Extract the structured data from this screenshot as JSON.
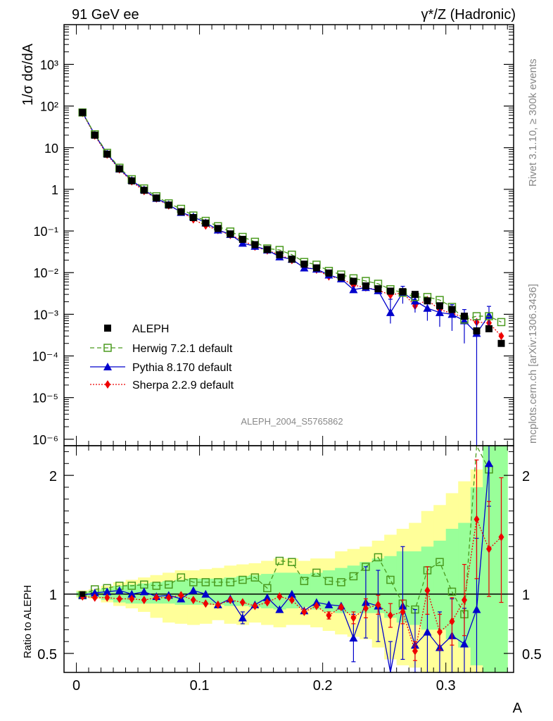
{
  "header": {
    "left": "91 GeV ee",
    "right": "γ*/Z (Hadronic)"
  },
  "side": {
    "rivet": "Rivet 3.1.10, ≥ 300k events",
    "mcplots": "mcplots.cern.ch [arXiv:1306.3436]"
  },
  "watermark": "ALEPH_2004_S5765862",
  "chart_data": [
    {
      "type": "scatter",
      "panel": "main",
      "title": "",
      "xlabel": "A",
      "ylabel": "1/σ  dσ/dA",
      "yscale": "log",
      "xlim": [
        -0.01,
        0.355
      ],
      "ylim": [
        7e-07,
        9000
      ],
      "yticks": [
        "10⁻⁶",
        "10⁻⁵",
        "10⁻⁴",
        "10⁻³",
        "10⁻²",
        "10⁻¹",
        "1",
        "10",
        "10²",
        "10³"
      ],
      "legend_position": "lower-left",
      "x": [
        0.005,
        0.015,
        0.025,
        0.035,
        0.045,
        0.055,
        0.065,
        0.075,
        0.085,
        0.095,
        0.105,
        0.115,
        0.125,
        0.135,
        0.145,
        0.155,
        0.165,
        0.175,
        0.185,
        0.195,
        0.205,
        0.215,
        0.225,
        0.235,
        0.245,
        0.255,
        0.265,
        0.275,
        0.285,
        0.295,
        0.305,
        0.315,
        0.325,
        0.335,
        0.345
      ],
      "series": [
        {
          "name": "ALEPH",
          "color": "#000000",
          "marker": "square",
          "values": [
            70,
            20,
            7,
            3.1,
            1.6,
            0.95,
            0.62,
            0.42,
            0.29,
            0.21,
            0.155,
            0.115,
            0.085,
            0.063,
            0.047,
            0.036,
            0.027,
            0.021,
            0.016,
            0.013,
            0.0098,
            0.0078,
            0.0062,
            0.0048,
            0.0041,
            0.0036,
            0.0035,
            0.003,
            0.0021,
            0.0016,
            0.0013,
            0.0009,
            0.0004,
            0.00045,
            0.0002
          ]
        },
        {
          "name": "Herwig 7.2.1 default",
          "color": "#4a9a1e",
          "marker": "open-square",
          "dash": "6,4",
          "values": [
            70,
            21,
            7.5,
            3.3,
            1.75,
            1.05,
            0.68,
            0.46,
            0.34,
            0.235,
            0.175,
            0.13,
            0.097,
            0.072,
            0.055,
            0.038,
            0.035,
            0.027,
            0.018,
            0.0155,
            0.011,
            0.009,
            0.0073,
            0.0063,
            0.0054,
            0.004,
            0.0033,
            0.0026,
            0.0026,
            0.0022,
            0.0015,
            0.00075,
            0.0009,
            0.0009,
            0.00065
          ]
        },
        {
          "name": "Pythia 8.170 default",
          "color": "#0000cc",
          "marker": "triangle",
          "values": [
            70,
            20.5,
            7.2,
            3.1,
            1.65,
            0.98,
            0.61,
            0.43,
            0.28,
            0.22,
            0.158,
            0.106,
            0.083,
            0.051,
            0.043,
            0.035,
            0.024,
            0.021,
            0.013,
            0.0122,
            0.0088,
            0.0071,
            0.0039,
            0.0044,
            0.0037,
            0.0011,
            0.0033,
            0.0021,
            0.0014,
            0.0011,
            0.001,
            0.0007,
            0.00035,
            0.00095,
            null
          ],
          "err_lo": [
            null,
            null,
            null,
            null,
            null,
            null,
            null,
            null,
            null,
            null,
            null,
            null,
            null,
            null,
            null,
            null,
            null,
            null,
            null,
            null,
            null,
            null,
            null,
            null,
            null,
            0.0005,
            0.0015,
            0.001,
            0.0007,
            0.0006,
            0.0006,
            0.0005,
            0.00035,
            0.0005,
            null
          ],
          "err_hi": [
            null,
            null,
            null,
            null,
            null,
            null,
            null,
            null,
            null,
            null,
            null,
            null,
            null,
            null,
            null,
            null,
            null,
            null,
            null,
            null,
            null,
            null,
            null,
            null,
            null,
            0.0012,
            0.0014,
            0.0012,
            0.0008,
            0.0007,
            0.0007,
            0.0006,
            0.0004,
            0.0006,
            null
          ]
        },
        {
          "name": "Sherpa 2.2.9 default",
          "color": "#ee0000",
          "marker": "diamond",
          "dash": "2,2",
          "values": [
            68,
            19.6,
            6.8,
            3.0,
            1.55,
            0.91,
            0.6,
            0.41,
            0.29,
            0.19,
            0.135,
            0.105,
            0.08,
            0.06,
            0.042,
            0.034,
            0.027,
            0.02,
            0.0135,
            0.0118,
            0.0081,
            0.0073,
            0.005,
            0.0044,
            0.0038,
            0.0029,
            0.0033,
            0.0016,
            0.0022,
            0.0013,
            0.00105,
            0.00085,
            0.00065,
            0.00062,
            0.0003
          ]
        }
      ]
    },
    {
      "type": "scatter",
      "panel": "ratio",
      "title": "",
      "xlabel": "A",
      "ylabel": "Ratio to ALEPH",
      "xlim": [
        -0.01,
        0.355
      ],
      "ylim": [
        0.34,
        2.25
      ],
      "xticks": [
        "0",
        "0.1",
        "0.2",
        "0.3"
      ],
      "yticks": [
        "0.5",
        "1",
        "2"
      ],
      "x": [
        0.005,
        0.015,
        0.025,
        0.035,
        0.045,
        0.055,
        0.065,
        0.075,
        0.085,
        0.095,
        0.105,
        0.115,
        0.125,
        0.135,
        0.145,
        0.155,
        0.165,
        0.175,
        0.185,
        0.195,
        0.205,
        0.215,
        0.225,
        0.235,
        0.245,
        0.255,
        0.265,
        0.275,
        0.285,
        0.295,
        0.305,
        0.315,
        0.325,
        0.335,
        0.345
      ],
      "band_green": [
        [
          0.98,
          1.02
        ],
        [
          0.97,
          1.03
        ],
        [
          0.95,
          1.05
        ],
        [
          0.93,
          1.07
        ],
        [
          0.92,
          1.08
        ],
        [
          0.92,
          1.09
        ],
        [
          0.92,
          1.1
        ],
        [
          0.92,
          1.11
        ],
        [
          0.91,
          1.12
        ],
        [
          0.91,
          1.13
        ],
        [
          0.91,
          1.13
        ],
        [
          0.91,
          1.13
        ],
        [
          0.9,
          1.14
        ],
        [
          0.9,
          1.15
        ],
        [
          0.89,
          1.16
        ],
        [
          0.88,
          1.17
        ],
        [
          0.87,
          1.18
        ],
        [
          0.88,
          1.18
        ],
        [
          0.89,
          1.17
        ],
        [
          0.87,
          1.18
        ],
        [
          0.85,
          1.2
        ],
        [
          0.84,
          1.22
        ],
        [
          0.84,
          1.24
        ],
        [
          0.84,
          1.27
        ],
        [
          0.84,
          1.3
        ],
        [
          0.8,
          1.32
        ],
        [
          0.76,
          1.36
        ],
        [
          0.74,
          1.36
        ],
        [
          0.7,
          1.4
        ],
        [
          0.7,
          1.45
        ],
        [
          0.62,
          1.55
        ],
        [
          0.55,
          1.6
        ],
        [
          0.4,
          1.9
        ],
        [
          0.34,
          2.25
        ],
        [
          0.34,
          2.25
        ]
      ],
      "band_yellow": [
        [
          0.97,
          1.03
        ],
        [
          0.96,
          1.04
        ],
        [
          0.93,
          1.07
        ],
        [
          0.9,
          1.1
        ],
        [
          0.88,
          1.12
        ],
        [
          0.85,
          1.14
        ],
        [
          0.8,
          1.16
        ],
        [
          0.76,
          1.18
        ],
        [
          0.75,
          1.2
        ],
        [
          0.74,
          1.2
        ],
        [
          0.75,
          1.21
        ],
        [
          0.78,
          1.22
        ],
        [
          0.75,
          1.24
        ],
        [
          0.74,
          1.25
        ],
        [
          0.76,
          1.26
        ],
        [
          0.74,
          1.28
        ],
        [
          0.72,
          1.3
        ],
        [
          0.74,
          1.3
        ],
        [
          0.74,
          1.28
        ],
        [
          0.72,
          1.3
        ],
        [
          0.69,
          1.3
        ],
        [
          0.66,
          1.36
        ],
        [
          0.64,
          1.38
        ],
        [
          0.62,
          1.4
        ],
        [
          0.55,
          1.45
        ],
        [
          0.45,
          1.5
        ],
        [
          0.4,
          1.55
        ],
        [
          0.38,
          1.6
        ],
        [
          0.34,
          1.7
        ],
        [
          0.34,
          1.75
        ],
        [
          0.34,
          1.85
        ],
        [
          0.34,
          1.95
        ],
        [
          0.34,
          2.05
        ],
        [
          0.34,
          2.15
        ],
        [
          0.34,
          2.25
        ]
      ],
      "series": [
        {
          "name": "Herwig 7.2.1 default",
          "color": "#4a9a1e",
          "values": [
            0.99,
            1.04,
            1.05,
            1.07,
            1.07,
            1.08,
            1.07,
            1.08,
            1.14,
            1.1,
            1.1,
            1.1,
            1.1,
            1.12,
            1.14,
            1.05,
            1.28,
            1.27,
            1.11,
            1.18,
            1.11,
            1.1,
            1.15,
            1.23,
            1.31,
            1.12,
            0.92,
            0.87,
            1.2,
            1.27,
            1.02,
            0.83,
            2.3,
            2.05,
            null
          ]
        },
        {
          "name": "Pythia 8.170 default",
          "color": "#0000cc",
          "values": [
            0.99,
            1.01,
            1.02,
            1.03,
            1.0,
            1.02,
            0.98,
            0.99,
            0.96,
            1.03,
            1.0,
            0.91,
            0.96,
            0.8,
            0.91,
            0.97,
            0.87,
            1.0,
            0.86,
            0.93,
            0.91,
            0.9,
            0.63,
            0.93,
            0.9,
            0.3,
            0.9,
            0.57,
            0.68,
            0.55,
            0.65,
            0.58,
            0.87,
            2.1,
            null
          ],
          "err_lo": [
            0,
            0,
            0,
            0,
            0,
            0,
            0,
            0,
            0,
            0,
            0,
            0,
            0,
            0.05,
            0,
            0,
            0,
            0,
            0,
            0,
            0,
            0,
            0.2,
            0.3,
            0.3,
            0.3,
            0.45,
            0.23,
            0.34,
            0.21,
            0.31,
            0.24,
            0.53,
            0.36,
            null
          ],
          "err_hi": [
            0,
            0,
            0,
            0,
            0,
            0,
            0,
            0,
            0,
            0,
            0,
            0,
            0,
            0.05,
            0,
            0,
            0,
            0,
            0,
            0,
            0,
            0,
            0.2,
            0.3,
            0.3,
            0.3,
            0.5,
            0.3,
            0.34,
            0.3,
            0.31,
            0.3,
            0.6,
            0.3,
            null
          ]
        },
        {
          "name": "Sherpa 2.2.9 default",
          "color": "#ee0000",
          "values": [
            0.98,
            0.97,
            0.97,
            0.96,
            0.96,
            0.95,
            0.97,
            0.97,
            0.99,
            0.95,
            0.92,
            0.91,
            0.95,
            0.93,
            0.9,
            0.93,
            0.98,
            0.95,
            0.85,
            0.9,
            0.82,
            0.89,
            0.8,
            0.88,
            0.91,
            0.82,
            0.85,
            0.52,
            1.03,
            0.68,
            0.77,
            0.95,
            1.63,
            1.38,
            1.48
          ],
          "err_lo": [
            0,
            0,
            0,
            0,
            0,
            0,
            0,
            0,
            0,
            0,
            0,
            0,
            0,
            0,
            0,
            0,
            0,
            0,
            0,
            0,
            0.03,
            0,
            0.05,
            0.08,
            0.08,
            0.1,
            0.1,
            0.08,
            0.2,
            0.15,
            0.2,
            0.3,
            0.5,
            0.4,
            0.55
          ],
          "err_hi": [
            0,
            0,
            0,
            0,
            0,
            0,
            0,
            0,
            0,
            0,
            0,
            0,
            0,
            0,
            0,
            0,
            0,
            0,
            0,
            0,
            0.03,
            0,
            0.05,
            0.08,
            0.08,
            0.1,
            0.1,
            0.08,
            0.2,
            0.15,
            0.2,
            0.3,
            0.5,
            0.4,
            0.5
          ]
        }
      ]
    }
  ]
}
